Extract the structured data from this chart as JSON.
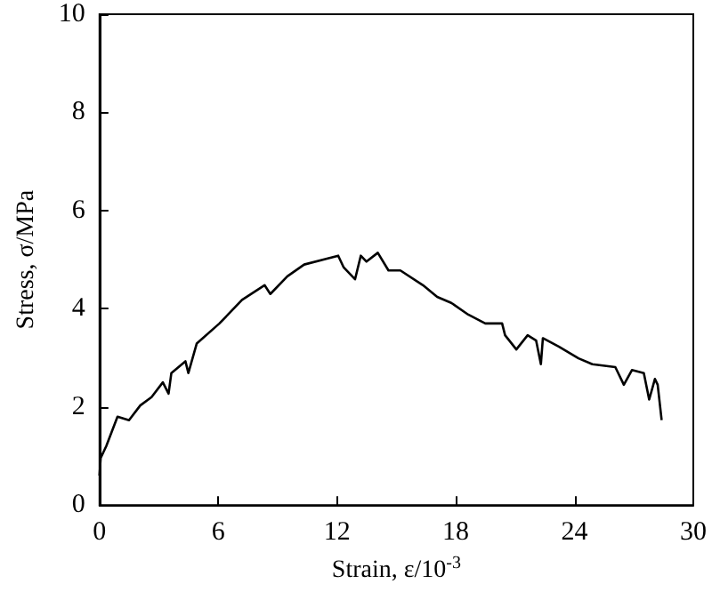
{
  "chart_data": {
    "type": "line",
    "xlabel": "Strain, ε/10$^{-3}$",
    "ylabel": "Stress, σ/MPa",
    "xlim": [
      0,
      30
    ],
    "ylim": [
      0,
      10
    ],
    "xticks": [
      0,
      6,
      12,
      18,
      24,
      30
    ],
    "yticks": [
      0,
      2,
      4,
      6,
      8,
      10
    ],
    "marker": "none",
    "line_style": "solid",
    "series": [
      {
        "color": "#000000",
        "x": [
          0,
          0.06,
          0.34,
          0.91,
          1.49,
          2.06,
          2.63,
          3.2,
          3.49,
          3.63,
          4.34,
          4.49,
          4.91,
          6.06,
          7.2,
          8.34,
          8.63,
          9.49,
          10.34,
          11.49,
          12.06,
          12.34,
          12.91,
          13.2,
          13.49,
          14.06,
          14.6,
          15.2,
          16.34,
          17.06,
          17.77,
          18.63,
          19.49,
          20.34,
          20.49,
          21.06,
          21.63,
          22.06,
          22.3,
          22.4,
          23.2,
          24.2,
          24.9,
          26.06,
          26.49,
          26.9,
          27.5,
          27.77,
          28.06,
          28.2,
          28.4
        ],
        "values": [
          0.6,
          0.96,
          1.2,
          1.8,
          1.73,
          2.03,
          2.2,
          2.5,
          2.27,
          2.69,
          2.93,
          2.69,
          3.29,
          3.7,
          4.18,
          4.48,
          4.3,
          4.66,
          4.9,
          5.02,
          5.08,
          4.84,
          4.6,
          5.08,
          4.96,
          5.14,
          4.78,
          4.78,
          4.48,
          4.24,
          4.12,
          3.88,
          3.7,
          3.7,
          3.46,
          3.17,
          3.46,
          3.35,
          2.87,
          3.4,
          3.23,
          2.99,
          2.87,
          2.81,
          2.45,
          2.75,
          2.69,
          2.15,
          2.57,
          2.45,
          1.73
        ]
      }
    ]
  }
}
